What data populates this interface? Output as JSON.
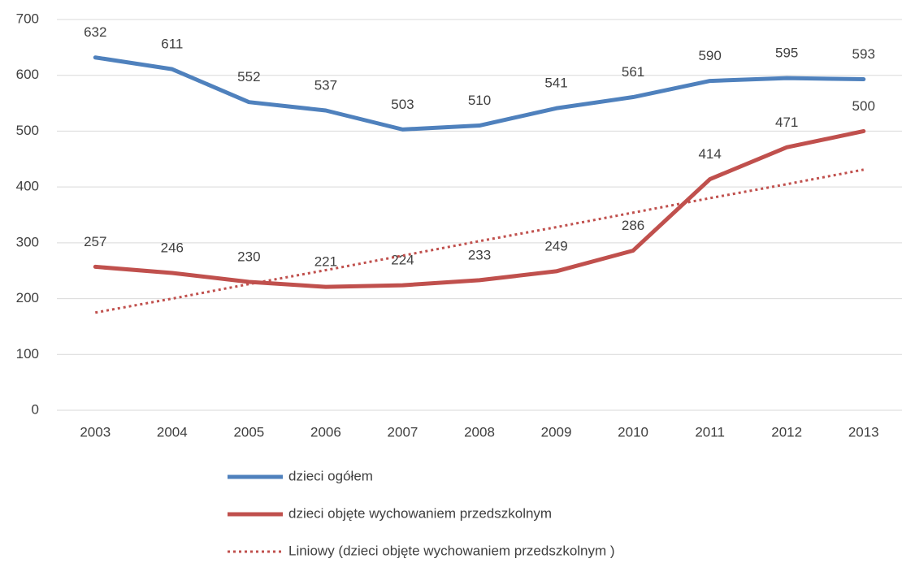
{
  "chart_data": {
    "type": "line",
    "categories": [
      "2003",
      "2004",
      "2005",
      "2006",
      "2007",
      "2008",
      "2009",
      "2010",
      "2011",
      "2012",
      "2013"
    ],
    "series": [
      {
        "name": "dzieci ogółem",
        "color": "#4f81bd",
        "values": [
          632,
          611,
          552,
          537,
          503,
          510,
          541,
          561,
          590,
          595,
          593
        ],
        "data_labels": true
      },
      {
        "name": "dzieci objęte wychowaniem przedszkolnym",
        "color": "#c0504d",
        "values": [
          257,
          246,
          230,
          221,
          224,
          233,
          249,
          286,
          414,
          471,
          500
        ],
        "data_labels": true
      },
      {
        "name": "Liniowy (dzieci objęte wychowaniem przedszkolnym )",
        "color": "#c0504d",
        "dashed": true,
        "values": [
          175,
          200,
          226,
          251,
          277,
          303,
          328,
          354,
          380,
          405,
          431
        ],
        "data_labels": false
      }
    ],
    "ylim": [
      0,
      700
    ],
    "yticks": [
      0,
      100,
      200,
      300,
      400,
      500,
      600,
      700
    ],
    "grid": true,
    "legend": "bottom"
  }
}
